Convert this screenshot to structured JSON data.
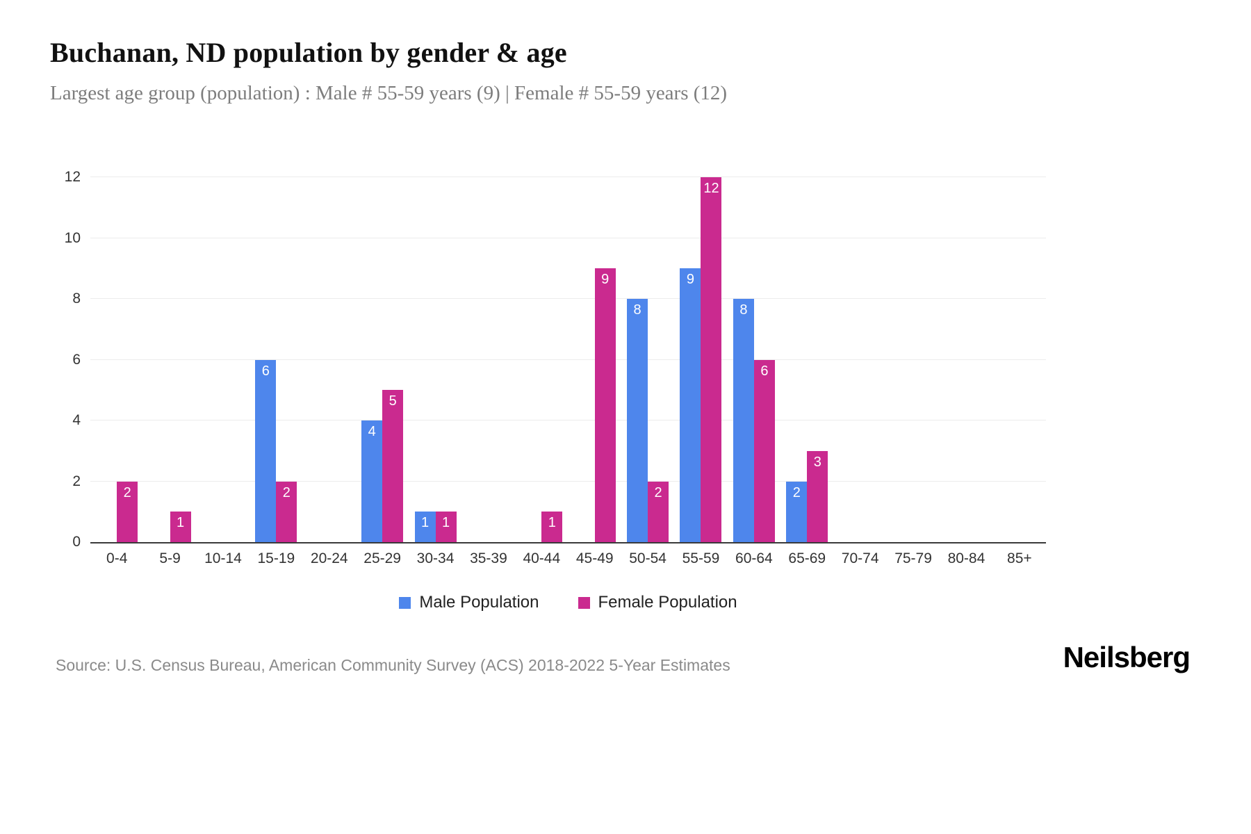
{
  "header": {
    "title": "Buchanan, ND population by gender & age",
    "subtitle": "Largest age group (population) : Male # 55-59 years (9) | Female # 55-59 years (12)"
  },
  "chart_data": {
    "type": "bar",
    "title": "Buchanan, ND population by gender & age",
    "categories": [
      "0-4",
      "5-9",
      "10-14",
      "15-19",
      "20-24",
      "25-29",
      "30-34",
      "35-39",
      "40-44",
      "45-49",
      "50-54",
      "55-59",
      "60-64",
      "65-69",
      "70-74",
      "75-79",
      "80-84",
      "85+"
    ],
    "series": [
      {
        "name": "Male Population",
        "color": "#4e86ec",
        "values": [
          0,
          0,
          0,
          6,
          0,
          4,
          1,
          0,
          0,
          0,
          8,
          9,
          8,
          2,
          0,
          0,
          0,
          0
        ]
      },
      {
        "name": "Female Population",
        "color": "#ca2a8f",
        "values": [
          2,
          1,
          0,
          2,
          0,
          5,
          1,
          0,
          1,
          9,
          2,
          12,
          6,
          3,
          0,
          0,
          0,
          0
        ]
      }
    ],
    "xlabel": "",
    "ylabel": "",
    "ylim": [
      0,
      12
    ],
    "yticks": [
      0,
      2,
      4,
      6,
      8,
      10,
      12
    ],
    "grid": true,
    "legend_position": "bottom",
    "value_labels_shown": true
  },
  "footer": {
    "source": "Source: U.S. Census Bureau, American Community Survey (ACS) 2018-2022 5-Year Estimates",
    "brand": "Neilsberg"
  }
}
